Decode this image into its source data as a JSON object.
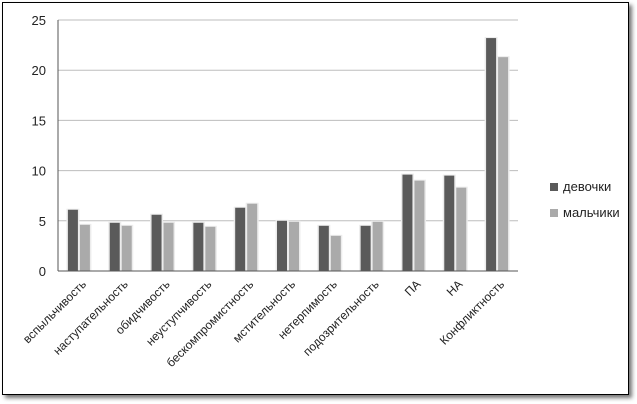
{
  "chart_data": {
    "type": "bar",
    "categories": [
      "вспыльчивость",
      "наступательность",
      "обидчивость",
      "неуступчивость",
      "бескомпромистность",
      "мстительность",
      "нетерпимость",
      "подозрительность",
      "ПА",
      "НА",
      "Конфликтность"
    ],
    "series": [
      {
        "name": "девочки",
        "values": [
          6.1,
          4.8,
          5.6,
          4.8,
          6.3,
          5.0,
          4.5,
          4.5,
          9.6,
          9.5,
          23.2
        ],
        "color": "#5a5a5a"
      },
      {
        "name": "мальчики",
        "values": [
          4.6,
          4.5,
          4.8,
          4.4,
          6.7,
          4.9,
          3.5,
          4.9,
          9.0,
          8.3,
          21.3
        ],
        "color": "#aaaaaa"
      }
    ],
    "ylim": [
      0,
      25
    ],
    "yticks": [
      "0",
      "5",
      "10",
      "15",
      "20",
      "25"
    ],
    "grid": true,
    "legend_position": "right"
  }
}
